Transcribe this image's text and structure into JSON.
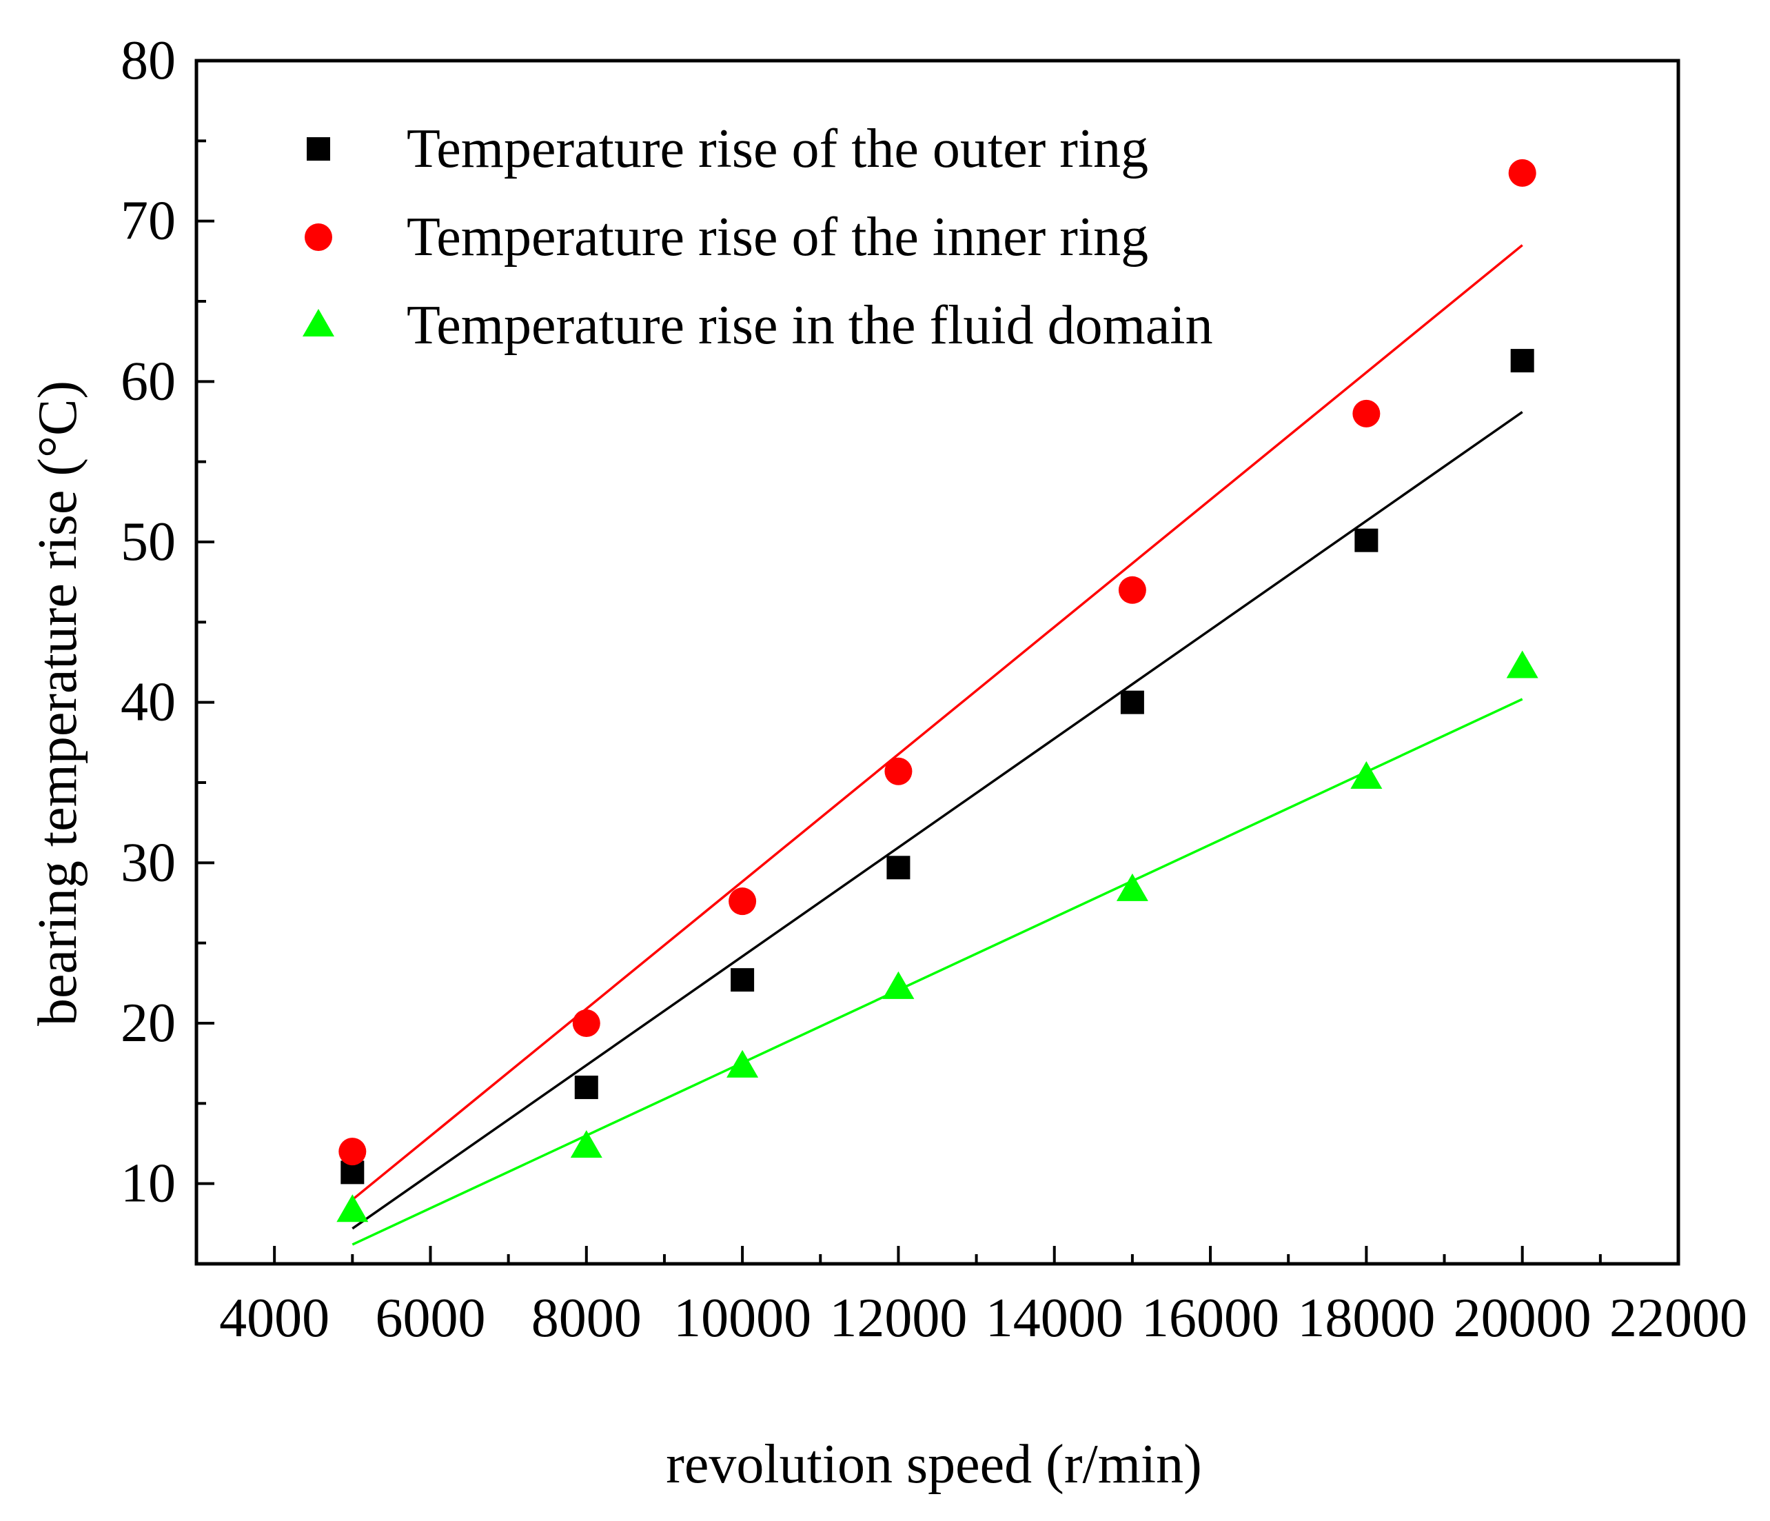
{
  "chart_data": {
    "type": "scatter",
    "title": "",
    "xlabel": "revolution speed (r/min)",
    "ylabel": "bearing temperature rise (°C)",
    "xlim": [
      3000,
      22000
    ],
    "ylim": [
      5,
      80
    ],
    "x_ticks": [
      4000,
      6000,
      8000,
      10000,
      12000,
      14000,
      16000,
      18000,
      20000,
      22000
    ],
    "y_ticks": [
      10,
      20,
      30,
      40,
      50,
      60,
      70,
      80
    ],
    "grid": false,
    "legend_position": "top-left",
    "x": [
      5000,
      8000,
      10000,
      12000,
      15000,
      18000,
      20000
    ],
    "series": [
      {
        "name": "Temperature rise of the outer ring",
        "marker": "square",
        "color": "#000000",
        "values": [
          10.7,
          16.0,
          22.7,
          29.7,
          40.0,
          50.1,
          61.3
        ],
        "fit_line": {
          "x": [
            5000,
            20000
          ],
          "y": [
            7.2,
            58.1
          ]
        }
      },
      {
        "name": "Temperature rise of the inner ring",
        "marker": "circle",
        "color": "#ff0000",
        "values": [
          12.0,
          20.0,
          27.6,
          35.7,
          47.0,
          58.0,
          73.0
        ],
        "fit_line": {
          "x": [
            5000,
            20000
          ],
          "y": [
            9.0,
            68.5
          ]
        }
      },
      {
        "name": "Temperature rise in the fluid domain",
        "marker": "triangle",
        "color": "#00ff00",
        "values": [
          8.3,
          12.3,
          17.3,
          22.2,
          28.3,
          35.3,
          42.2
        ],
        "fit_line": {
          "x": [
            5000,
            20000
          ],
          "y": [
            6.2,
            40.2
          ]
        }
      }
    ]
  }
}
